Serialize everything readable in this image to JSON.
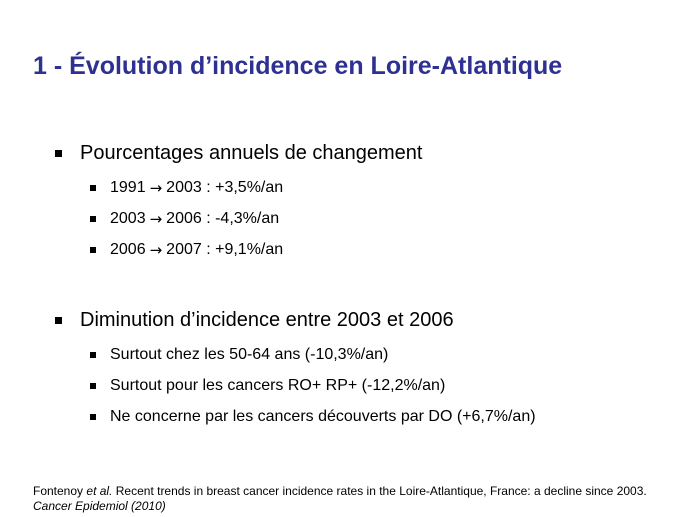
{
  "title": "1 - Évolution d’incidence en Loire-Atlantique",
  "section1": {
    "heading": "Pourcentages annuels de changement",
    "items": [
      {
        "from": "1991",
        "to": "2003 : +3,5%/an"
      },
      {
        "from": "2003",
        "to": "2006 : -4,3%/an"
      },
      {
        "from": "2006",
        "to": "2007 : +9,1%/an"
      }
    ]
  },
  "section2": {
    "heading": "Diminution d’incidence entre 2003 et 2006",
    "items": [
      "Surtout chez les 50-64 ans (-10,3%/an)",
      "Surtout pour les cancers RO+ RP+ (-12,2%/an)",
      "Ne concerne par les cancers découverts par DO (+6,7%/an)"
    ]
  },
  "reference": {
    "author": "Fontenoy",
    "etal": "et al.",
    "text": "Recent trends in breast cancer incidence rates in the Loire-Atlantique, France: a decline since 2003.",
    "journal": "Cancer Epidemiol (2010)"
  },
  "icons": {
    "arrow": "→"
  },
  "colors": {
    "title": "#2e3192"
  }
}
